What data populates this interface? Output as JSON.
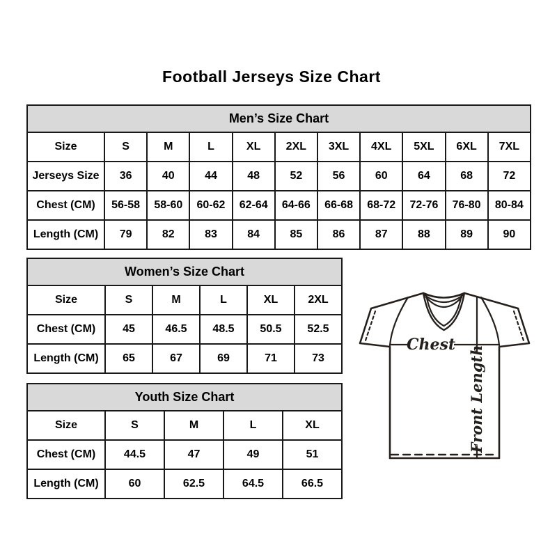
{
  "page": {
    "title": "Football Jerseys Size Chart"
  },
  "colors": {
    "table_header_fill": "#d9d9d9",
    "table_border": "#191919",
    "text": "#000000",
    "jersey_line": "#26201d"
  },
  "tables": {
    "men": {
      "title": "Men’s Size Chart",
      "size_label": "Size",
      "sizes": [
        "S",
        "M",
        "L",
        "XL",
        "2XL",
        "3XL",
        "4XL",
        "5XL",
        "6XL",
        "7XL"
      ],
      "rows": [
        {
          "label": "Jerseys Size",
          "values": [
            "36",
            "40",
            "44",
            "48",
            "52",
            "56",
            "60",
            "64",
            "68",
            "72"
          ]
        },
        {
          "label": "Chest (CM)",
          "values": [
            "56-58",
            "58-60",
            "60-62",
            "62-64",
            "64-66",
            "66-68",
            "68-72",
            "72-76",
            "76-80",
            "80-84"
          ]
        },
        {
          "label": "Length (CM)",
          "values": [
            "79",
            "82",
            "83",
            "84",
            "85",
            "86",
            "87",
            "88",
            "89",
            "90"
          ]
        }
      ]
    },
    "women": {
      "title": "Women’s Size Chart",
      "size_label": "Size",
      "sizes": [
        "S",
        "M",
        "L",
        "XL",
        "2XL"
      ],
      "rows": [
        {
          "label": "Chest (CM)",
          "values": [
            "45",
            "46.5",
            "48.5",
            "50.5",
            "52.5"
          ]
        },
        {
          "label": "Length (CM)",
          "values": [
            "65",
            "67",
            "69",
            "71",
            "73"
          ]
        }
      ]
    },
    "youth": {
      "title": "Youth Size Chart",
      "size_label": "Size",
      "sizes": [
        "S",
        "M",
        "L",
        "XL"
      ],
      "rows": [
        {
          "label": "Chest (CM)",
          "values": [
            "44.5",
            "47",
            "49",
            "51"
          ]
        },
        {
          "label": "Length (CM)",
          "values": [
            "60",
            "62.5",
            "64.5",
            "66.5"
          ]
        }
      ]
    }
  },
  "diagram": {
    "chest_label": "Chest",
    "front_length_label": "Front Length"
  }
}
